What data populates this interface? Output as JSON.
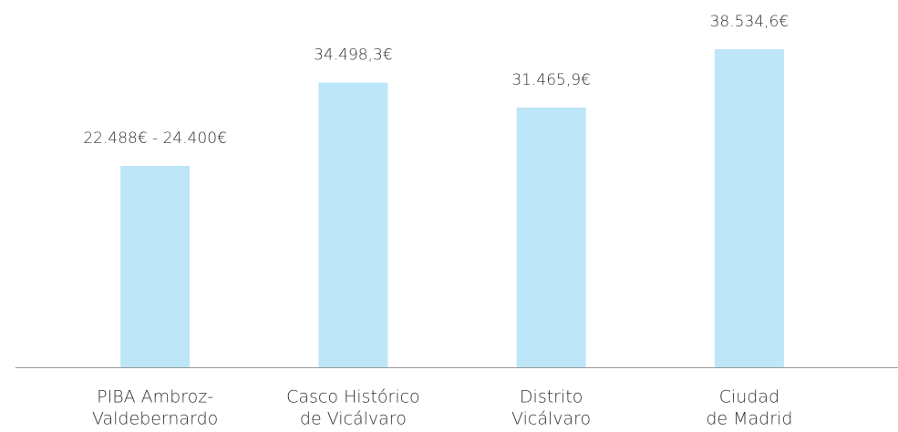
{
  "chart_data": {
    "type": "bar",
    "categories": [
      [
        "PIBA Ambroz-",
        "Valdebernardo"
      ],
      [
        "Casco Histórico",
        "de Vicálvaro"
      ],
      [
        "Distrito",
        "Vicálvaro"
      ],
      [
        "Ciudad",
        "de Madrid"
      ]
    ],
    "values": [
      24400,
      34498.3,
      31465.9,
      38534.6
    ],
    "value_labels": [
      "22.488€ - 24.400€",
      "34.498,3€",
      "31.465,9€",
      "38.534,6€"
    ],
    "color": "#bde6f8",
    "ylim": [
      0,
      44500
    ]
  }
}
